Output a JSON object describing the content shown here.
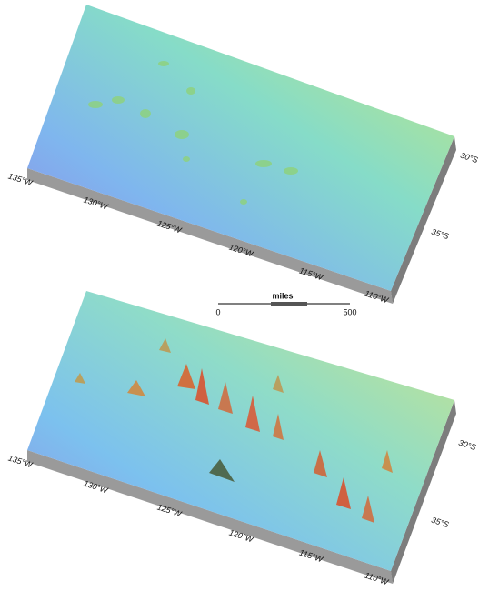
{
  "panels": [
    {
      "lon_labels": [
        "135°W",
        "130°W",
        "125°W",
        "120°W",
        "115°W",
        "110°W"
      ],
      "lat_labels": [
        "30°S",
        "35°S"
      ]
    },
    {
      "lon_labels": [
        "135°W",
        "130°W",
        "125°W",
        "120°W",
        "115°W",
        "110°W"
      ],
      "lat_labels": [
        "30°S",
        "35°S"
      ]
    }
  ],
  "scale_bar": {
    "unit": "miles",
    "start": "0",
    "end": "500"
  }
}
